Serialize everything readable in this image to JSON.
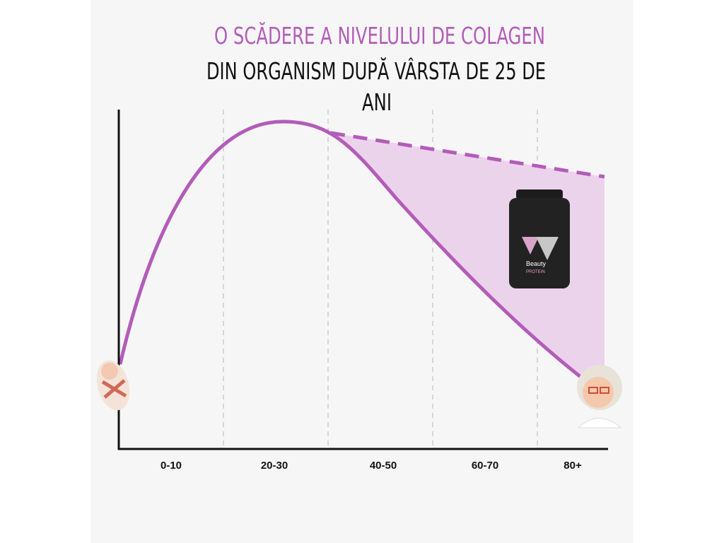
{
  "header": {
    "title_lines": [
      "O SCĂDERE A NIVELULUI DE COLAGEN",
      "DIN ORGANISM DUPĂ VÂRSTA DE 25 DE",
      "ANI"
    ]
  },
  "axis": {
    "categories": [
      "0-10",
      "20-30",
      "40-50",
      "60-70",
      "80+"
    ]
  },
  "product": {
    "name": "Beauty",
    "subtitle": "PROTEIN"
  }
}
